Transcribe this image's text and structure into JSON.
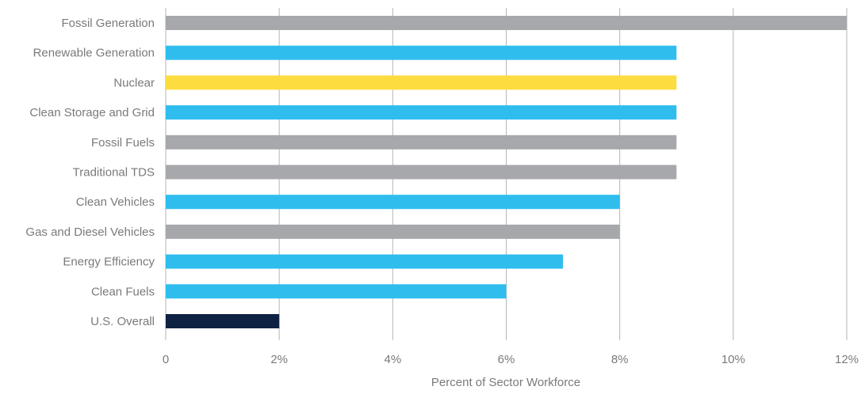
{
  "chart_data": {
    "type": "hbar",
    "categories": [
      "Fossil Generation",
      "Renewable Generation",
      "Nuclear",
      "Clean Storage and Grid",
      "Fossil Fuels",
      "Traditional TDS",
      "Clean Vehicles",
      "Gas and Diesel Vehicles",
      "Energy Efficiency",
      "Clean Fuels",
      "U.S. Overall"
    ],
    "values": [
      12,
      9,
      9,
      9,
      9,
      9,
      8,
      8,
      7,
      6,
      2
    ],
    "colors": [
      "#a7a8ab",
      "#2fbdee",
      "#fcdc3e",
      "#2fbdee",
      "#a7a8ab",
      "#a7a8ab",
      "#2fbdee",
      "#a7a8ab",
      "#2fbdee",
      "#2fbdee",
      "#0f2244"
    ],
    "x_label": "Percent of Sector Workforce",
    "xlim": [
      0,
      12
    ],
    "xticks": [
      0,
      {
        "value": 2,
        "label": "2%"
      },
      {
        "value": 4,
        "label": "4%"
      },
      {
        "value": 6,
        "label": "6%"
      },
      {
        "value": 8,
        "label": "8%"
      },
      {
        "value": 10,
        "label": "10%"
      },
      {
        "value": 12,
        "label": "12%"
      }
    ],
    "grid": true
  }
}
